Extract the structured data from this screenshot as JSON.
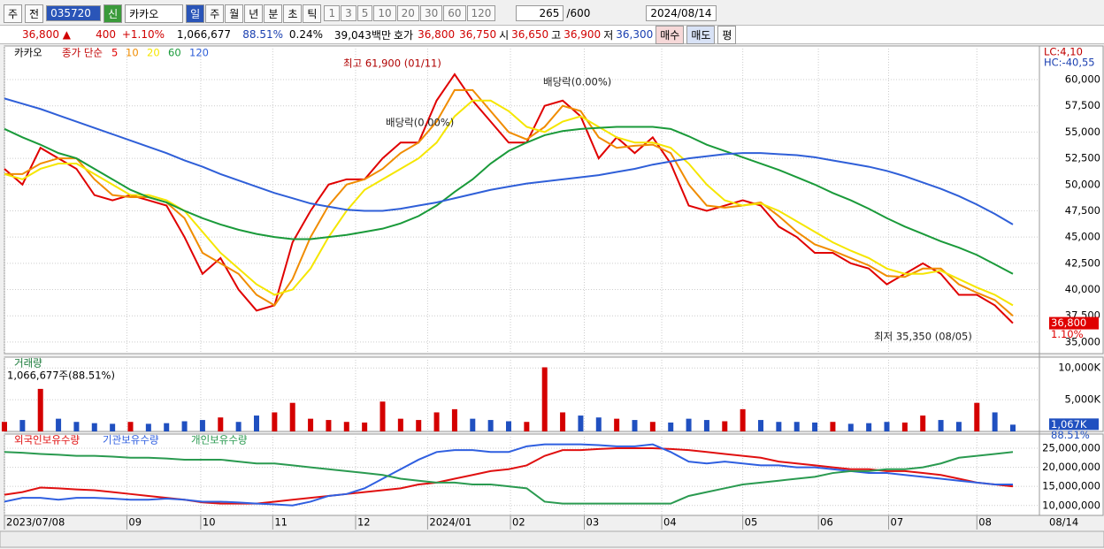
{
  "toolbar": {
    "items": [
      "주",
      "전"
    ],
    "code": "035720",
    "badge": "신",
    "name": "카카오",
    "periods": [
      "일",
      "주",
      "월",
      "년",
      "분",
      "초",
      "틱"
    ],
    "numbers": [
      "1",
      "3",
      "5",
      "10",
      "20",
      "30",
      "60",
      "120"
    ],
    "count": "265",
    "count_max": "/600",
    "date": "2024/08/14"
  },
  "infobar": {
    "price": "36,800 ▲",
    "change": "400",
    "rate": "+1.10%",
    "volume": "1,066,677",
    "volume_ratio": "88.51%",
    "turnover": "0.24%",
    "amount": "39,043백만",
    "quote_label": "호가",
    "ask": "36,800",
    "bid": "36,750",
    "open_label": "시",
    "open": "36,650",
    "high_label": "고",
    "high": "36,900",
    "low_label": "저",
    "low": "36,300",
    "buttons": [
      "매수",
      "매도",
      "평"
    ]
  },
  "chart_data": [
    {
      "type": "line",
      "title": "카카오",
      "legend_label": "종가 단순",
      "lc": "LC:4,10",
      "hc": "HC:-40,55",
      "current_label": "36,800",
      "current_change": "1.10%",
      "xlim": [
        0,
        56
      ],
      "ylim": [
        33900,
        63200
      ],
      "yticks": [
        {
          "value": 35000,
          "label": "35,000"
        },
        {
          "value": 37500,
          "label": "37,500"
        },
        {
          "value": 40000,
          "label": "40,000"
        },
        {
          "value": 42500,
          "label": "42,500"
        },
        {
          "value": 45000,
          "label": "45,000"
        },
        {
          "value": 47500,
          "label": "47,500"
        },
        {
          "value": 50000,
          "label": "50,000"
        },
        {
          "value": 52500,
          "label": "52,500"
        },
        {
          "value": 55000,
          "label": "55,000"
        },
        {
          "value": 57500,
          "label": "57,500"
        },
        {
          "value": 60000,
          "label": "60,000"
        }
      ],
      "annotations": [
        "최고 61,900 (01/11)",
        "배당락(0.00%)",
        "배당락(0.00%)",
        "최저 35,350 (08/05)"
      ],
      "series": [
        {
          "name": "5",
          "color": "#e00000",
          "values": [
            51500,
            50000,
            53500,
            52500,
            51500,
            49000,
            48500,
            49000,
            48500,
            48000,
            45000,
            41500,
            43000,
            40000,
            38000,
            38500,
            44500,
            47500,
            50000,
            50500,
            50500,
            52500,
            54000,
            54000,
            58000,
            60500,
            58000,
            56000,
            54000,
            54000,
            57500,
            58000,
            56500,
            52500,
            54500,
            53000,
            54500,
            52000,
            48000,
            47500,
            48000,
            48500,
            48000,
            46000,
            45000,
            43500,
            43500,
            42500,
            42000,
            40500,
            41500,
            42500,
            41500,
            39500,
            39500,
            38500,
            36800
          ]
        },
        {
          "name": "10",
          "color": "#f08c00",
          "values": [
            51000,
            51000,
            52000,
            52500,
            52500,
            50500,
            49000,
            48800,
            48800,
            48300,
            46800,
            43500,
            42500,
            41500,
            39500,
            38500,
            41000,
            45000,
            48000,
            50000,
            50500,
            51500,
            53000,
            54000,
            56000,
            59000,
            59000,
            57000,
            55000,
            54300,
            55500,
            57500,
            57000,
            54500,
            53500,
            53700,
            53800,
            53000,
            50000,
            48000,
            47800,
            48000,
            48300,
            47000,
            45500,
            44300,
            43700,
            43000,
            42300,
            41300,
            41200,
            42000,
            42000,
            40500,
            39700,
            39000,
            37500
          ]
        },
        {
          "name": "20",
          "color": "#f5e600",
          "values": [
            51000,
            50500,
            51500,
            52000,
            52000,
            51000,
            50000,
            49000,
            49000,
            48500,
            47500,
            45500,
            43500,
            42000,
            40500,
            39500,
            40000,
            42000,
            45000,
            47500,
            49500,
            50500,
            51500,
            52500,
            54000,
            56500,
            58000,
            58000,
            57000,
            55500,
            55000,
            56000,
            56500,
            55500,
            54500,
            54000,
            54000,
            53500,
            52000,
            50000,
            48500,
            48000,
            48200,
            47500,
            46500,
            45500,
            44500,
            43700,
            43000,
            42000,
            41500,
            41500,
            41800,
            41000,
            40200,
            39500,
            38500
          ]
        },
        {
          "name": "60",
          "color": "#1a9a3a",
          "values": [
            55300,
            54500,
            53800,
            53000,
            52500,
            51500,
            50500,
            49500,
            48800,
            48300,
            47500,
            46800,
            46200,
            45700,
            45300,
            45000,
            44800,
            44800,
            45000,
            45200,
            45500,
            45800,
            46300,
            47000,
            48000,
            49300,
            50500,
            52000,
            53200,
            54000,
            54700,
            55100,
            55300,
            55400,
            55500,
            55500,
            55500,
            55300,
            54600,
            53800,
            53200,
            52600,
            52000,
            51400,
            50700,
            50000,
            49200,
            48500,
            47700,
            46800,
            46000,
            45300,
            44600,
            44000,
            43300,
            42400,
            41500
          ]
        },
        {
          "name": "120",
          "color": "#2f5fd8",
          "values": [
            58200,
            57700,
            57200,
            56600,
            56000,
            55400,
            54800,
            54200,
            53600,
            53000,
            52300,
            51700,
            51000,
            50400,
            49800,
            49200,
            48700,
            48200,
            47900,
            47600,
            47500,
            47500,
            47700,
            48000,
            48300,
            48700,
            49100,
            49500,
            49800,
            50100,
            50300,
            50500,
            50700,
            50900,
            51200,
            51500,
            51900,
            52200,
            52500,
            52700,
            52900,
            53000,
            53000,
            52900,
            52800,
            52600,
            52300,
            52000,
            51700,
            51300,
            50800,
            50200,
            49600,
            48900,
            48100,
            47200,
            46200
          ]
        }
      ]
    },
    {
      "type": "bar",
      "title": "거래량",
      "subtitle": "1,066,677주(88.51%)",
      "current_label": "1,067K",
      "current_ratio": "88.51%",
      "up_color": "#d40000",
      "down_color": "#2050c0",
      "xlim": [
        0,
        56
      ],
      "ylim": [
        0,
        11700
      ],
      "yticks": [
        {
          "value": 5000,
          "label": "5,000K"
        },
        {
          "value": 10000,
          "label": "10,000K"
        }
      ],
      "values": [
        1500,
        1800,
        6700,
        2000,
        1500,
        1300,
        1200,
        1500,
        1200,
        1300,
        1600,
        1800,
        2200,
        1500,
        2500,
        3000,
        4500,
        2000,
        1800,
        1500,
        1400,
        4700,
        2000,
        1800,
        3000,
        3500,
        2000,
        1800,
        1600,
        1500,
        10100,
        3000,
        2500,
        2200,
        2000,
        1800,
        1500,
        1400,
        2000,
        1800,
        1600,
        3500,
        1800,
        1500,
        1500,
        1400,
        1500,
        1200,
        1300,
        1500,
        1400,
        2500,
        1800,
        1500,
        4500,
        3000,
        1067
      ]
    },
    {
      "type": "line",
      "xlim": [
        0,
        56
      ],
      "ylim": [
        7400000,
        28700000
      ],
      "yticks": [
        {
          "value": 10000000,
          "label": "10,000,000"
        },
        {
          "value": 15000000,
          "label": "15,000,000"
        },
        {
          "value": 20000000,
          "label": "20,000,000"
        },
        {
          "value": 25000000,
          "label": "25,000,000"
        }
      ],
      "xticks": [
        {
          "value": 0,
          "label": "2023/07/08"
        },
        {
          "value": 6.8,
          "label": "09"
        },
        {
          "value": 10.9,
          "label": "10"
        },
        {
          "value": 14.9,
          "label": "11"
        },
        {
          "value": 19.5,
          "label": "12"
        },
        {
          "value": 23.5,
          "label": "2024/01"
        },
        {
          "value": 28.1,
          "label": "02"
        },
        {
          "value": 32.2,
          "label": "03"
        },
        {
          "value": 36.5,
          "label": "04"
        },
        {
          "value": 41,
          "label": "05"
        },
        {
          "value": 45.2,
          "label": "06"
        },
        {
          "value": 49.1,
          "label": "07"
        },
        {
          "value": 54,
          "label": "08"
        }
      ],
      "end_label": "08/14",
      "series": [
        {
          "name": "외국인보유수량",
          "color": "#e01010",
          "values": [
            12800000,
            13500000,
            14700000,
            14500000,
            14200000,
            14000000,
            13500000,
            13000000,
            12500000,
            12000000,
            11500000,
            10800000,
            10500000,
            10500000,
            10500000,
            11000000,
            11500000,
            12000000,
            12500000,
            13000000,
            13500000,
            14000000,
            14500000,
            15500000,
            16000000,
            17000000,
            18000000,
            19000000,
            19500000,
            20500000,
            23000000,
            24500000,
            24500000,
            24800000,
            25000000,
            25000000,
            25000000,
            24800000,
            24500000,
            24000000,
            23500000,
            23000000,
            22500000,
            21500000,
            21000000,
            20500000,
            20000000,
            19500000,
            19500000,
            19000000,
            19000000,
            18500000,
            18000000,
            17000000,
            16000000,
            15500000,
            15000000
          ]
        },
        {
          "name": "기관보유수량",
          "color": "#2f5fe0",
          "values": [
            11000000,
            12000000,
            12000000,
            11500000,
            12000000,
            12000000,
            11800000,
            11500000,
            11500000,
            11800000,
            11500000,
            11000000,
            11000000,
            10800000,
            10500000,
            10300000,
            10000000,
            11000000,
            12500000,
            13000000,
            14500000,
            17000000,
            19500000,
            22000000,
            24000000,
            24500000,
            24500000,
            24000000,
            24000000,
            25500000,
            26000000,
            26000000,
            26000000,
            25800000,
            25500000,
            25500000,
            26000000,
            24000000,
            21500000,
            21000000,
            21500000,
            21000000,
            20500000,
            20500000,
            20000000,
            20000000,
            19500000,
            19000000,
            18500000,
            18500000,
            18000000,
            17500000,
            17000000,
            16500000,
            16000000,
            15500000,
            15500000
          ]
        },
        {
          "name": "개인보유수량",
          "color": "#2a9a50",
          "values": [
            24000000,
            23800000,
            23500000,
            23300000,
            23000000,
            23000000,
            22800000,
            22500000,
            22500000,
            22300000,
            22000000,
            22000000,
            22000000,
            21500000,
            21000000,
            21000000,
            20500000,
            20000000,
            19500000,
            19000000,
            18500000,
            18000000,
            17000000,
            16500000,
            16000000,
            16000000,
            15500000,
            15500000,
            15000000,
            14500000,
            11000000,
            10500000,
            10500000,
            10500000,
            10500000,
            10500000,
            10500000,
            10500000,
            12500000,
            13500000,
            14500000,
            15500000,
            16000000,
            16500000,
            17000000,
            17500000,
            18500000,
            19000000,
            19000000,
            19500000,
            19500000,
            20000000,
            21000000,
            22500000,
            23000000,
            23500000,
            24000000
          ]
        }
      ]
    }
  ]
}
